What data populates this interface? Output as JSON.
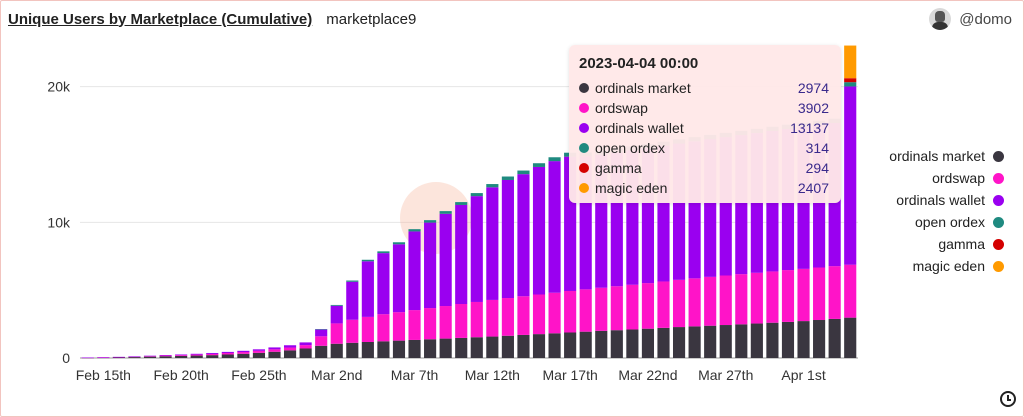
{
  "header": {
    "title": "Unique Users by Marketplace (Cumulative)",
    "subtitle": "marketplace9",
    "user": "@domo"
  },
  "tooltip": {
    "title": "2023-04-04 00:00",
    "rows": [
      {
        "name": "ordinals market",
        "value": "2974",
        "color": "#3a3640"
      },
      {
        "name": "ordswap",
        "value": "3902",
        "color": "#ff14c8"
      },
      {
        "name": "ordinals wallet",
        "value": "13137",
        "color": "#9a00f0"
      },
      {
        "name": "open ordex",
        "value": "314",
        "color": "#1f8a80"
      },
      {
        "name": "gamma",
        "value": "294",
        "color": "#d40000"
      },
      {
        "name": "magic eden",
        "value": "2407",
        "color": "#ff9a00"
      }
    ]
  },
  "chart_data": {
    "type": "bar",
    "stacked": true,
    "categories": [
      "2023-02-14",
      "2023-02-15",
      "2023-02-16",
      "2023-02-17",
      "2023-02-18",
      "2023-02-19",
      "2023-02-20",
      "2023-02-21",
      "2023-02-22",
      "2023-02-23",
      "2023-02-24",
      "2023-02-25",
      "2023-02-26",
      "2023-02-27",
      "2023-02-28",
      "2023-03-01",
      "2023-03-02",
      "2023-03-03",
      "2023-03-04",
      "2023-03-05",
      "2023-03-06",
      "2023-03-07",
      "2023-03-08",
      "2023-03-09",
      "2023-03-10",
      "2023-03-11",
      "2023-03-12",
      "2023-03-13",
      "2023-03-14",
      "2023-03-15",
      "2023-03-16",
      "2023-03-17",
      "2023-03-18",
      "2023-03-19",
      "2023-03-20",
      "2023-03-21",
      "2023-03-22",
      "2023-03-23",
      "2023-03-24",
      "2023-03-25",
      "2023-03-26",
      "2023-03-27",
      "2023-03-28",
      "2023-03-29",
      "2023-03-30",
      "2023-03-31",
      "2023-04-01",
      "2023-04-02",
      "2023-04-03",
      "2023-04-04"
    ],
    "x_tick_labels": [
      "Feb 15th",
      "Feb 20th",
      "Feb 25th",
      "Mar 2nd",
      "Mar 7th",
      "Mar 12th",
      "Mar 17th",
      "Mar 22nd",
      "Mar 27th",
      "Apr 1st"
    ],
    "x_tick_indices": [
      1,
      6,
      11,
      16,
      21,
      26,
      31,
      36,
      41,
      46
    ],
    "y_ticks": [
      0,
      10000,
      20000
    ],
    "y_tick_labels": [
      "0",
      "10k",
      "20k"
    ],
    "ylim": [
      0,
      22700
    ],
    "hover_index": 49,
    "series": [
      {
        "name": "ordinals market",
        "color": "#3a3640",
        "values": [
          20,
          30,
          50,
          70,
          100,
          130,
          150,
          180,
          210,
          260,
          310,
          380,
          460,
          560,
          700,
          900,
          1050,
          1120,
          1180,
          1230,
          1280,
          1330,
          1380,
          1430,
          1480,
          1530,
          1580,
          1640,
          1700,
          1760,
          1820,
          1880,
          1940,
          2000,
          2050,
          2100,
          2160,
          2220,
          2280,
          2330,
          2380,
          2430,
          2480,
          2540,
          2600,
          2660,
          2720,
          2800,
          2880,
          2974
        ]
      },
      {
        "name": "ordswap",
        "color": "#ff14c8",
        "values": [
          10,
          15,
          20,
          30,
          40,
          50,
          60,
          70,
          90,
          110,
          130,
          150,
          180,
          210,
          250,
          700,
          1500,
          1700,
          1850,
          2000,
          2100,
          2200,
          2300,
          2400,
          2500,
          2600,
          2700,
          2780,
          2850,
          2920,
          2990,
          3060,
          3120,
          3180,
          3240,
          3300,
          3360,
          3420,
          3480,
          3540,
          3600,
          3650,
          3700,
          3740,
          3780,
          3820,
          3850,
          3870,
          3890,
          3902
        ]
      },
      {
        "name": "ordinals wallet",
        "color": "#9a00f0",
        "values": [
          5,
          10,
          15,
          20,
          30,
          40,
          50,
          60,
          70,
          80,
          90,
          110,
          140,
          170,
          200,
          500,
          1300,
          2800,
          4100,
          4500,
          5000,
          5800,
          6300,
          6800,
          7300,
          7800,
          8300,
          8700,
          9000,
          9400,
          9700,
          9900,
          9800,
          9800,
          9850,
          9900,
          9950,
          10000,
          10050,
          10100,
          10150,
          10200,
          10250,
          10300,
          10350,
          10400,
          10450,
          10500,
          10550,
          13137
        ]
      },
      {
        "name": "open ordex",
        "color": "#1f8a80",
        "values": [
          0,
          0,
          0,
          0,
          0,
          0,
          0,
          0,
          0,
          0,
          0,
          0,
          0,
          0,
          0,
          30,
          60,
          90,
          110,
          130,
          150,
          165,
          180,
          195,
          210,
          225,
          240,
          255,
          265,
          275,
          285,
          290,
          295,
          298,
          300,
          302,
          304,
          306,
          308,
          309,
          310,
          311,
          312,
          312,
          313,
          313,
          314,
          314,
          314,
          314
        ]
      },
      {
        "name": "gamma",
        "color": "#d40000",
        "values": [
          0,
          0,
          0,
          0,
          0,
          0,
          0,
          0,
          0,
          0,
          0,
          0,
          0,
          0,
          0,
          0,
          0,
          0,
          0,
          0,
          0,
          0,
          0,
          0,
          0,
          0,
          0,
          0,
          0,
          0,
          0,
          0,
          0,
          0,
          0,
          0,
          0,
          0,
          0,
          0,
          0,
          0,
          0,
          0,
          0,
          0,
          0,
          0,
          0,
          294
        ]
      },
      {
        "name": "magic eden",
        "color": "#ff9a00",
        "values": [
          0,
          0,
          0,
          0,
          0,
          0,
          0,
          0,
          0,
          0,
          0,
          0,
          0,
          0,
          0,
          0,
          0,
          0,
          0,
          0,
          0,
          0,
          0,
          0,
          0,
          0,
          0,
          0,
          0,
          0,
          0,
          0,
          0,
          0,
          0,
          0,
          0,
          0,
          0,
          0,
          0,
          0,
          0,
          0,
          0,
          0,
          0,
          0,
          0,
          2407
        ]
      }
    ]
  }
}
